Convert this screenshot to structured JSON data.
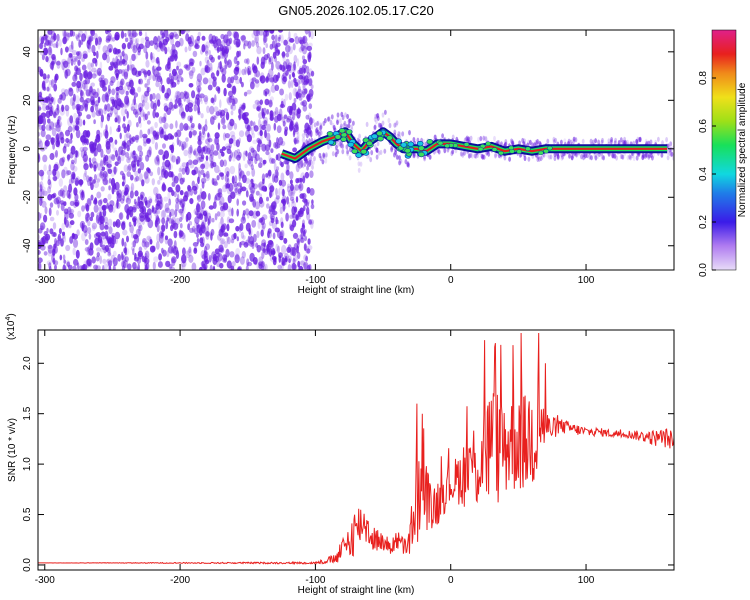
{
  "title": "GN05.2026.102.05.17.C20",
  "colors": {
    "snr_line": "#e8201e",
    "scatter_noise": "#6a1fe0",
    "track_core": "#e0201e",
    "track_edge": "#0d0f9a",
    "blob": "#3be05a",
    "axis": "#000000"
  },
  "chart_data": [
    {
      "type": "scatter",
      "title": "GN05.2026.102.05.17.C20",
      "xlabel": "Height of straight line (km)",
      "ylabel": "Frequency (Hz)",
      "xlim": [
        -305,
        165
      ],
      "ylim": [
        -50,
        49
      ],
      "xticks": [
        -300,
        -200,
        -100,
        0,
        100
      ],
      "yticks": [
        -40,
        -20,
        0,
        20,
        40
      ],
      "noise_region": {
        "x_range": [
          -305,
          -102
        ],
        "y_range": [
          -50,
          49
        ],
        "note": "dense random broadband detections"
      },
      "track": {
        "x": [
          -125,
          -115,
          -105,
          -95,
          -85,
          -78,
          -72,
          -66,
          -60,
          -55,
          -50,
          -45,
          -40,
          -35,
          -25,
          -18,
          -10,
          0,
          10,
          20,
          30,
          40,
          50,
          60,
          70,
          80,
          100,
          120,
          140,
          160
        ],
        "y": [
          -2,
          -4,
          0,
          3,
          5,
          7,
          2,
          -1,
          3,
          5,
          7,
          5,
          2,
          0,
          0,
          -1,
          2,
          2,
          1,
          0,
          1,
          -1,
          0,
          -1,
          0,
          0,
          0,
          0,
          0,
          0
        ]
      },
      "colorbar": {
        "label": "Normalized spectral amplitude",
        "range": [
          0,
          1
        ],
        "ticks": [
          "0.0",
          "0.2",
          "0.4",
          "0.6",
          "0.8"
        ]
      }
    },
    {
      "type": "line",
      "xlabel": "Height of straight line (km)",
      "ylabel": "SNR (10 * v/v)",
      "yscale_label": "(x10",
      "yscale_exp": "4",
      "xlim": [
        -305,
        165
      ],
      "ylim": [
        -0.05,
        2.33
      ],
      "xticks": [
        -300,
        -200,
        -100,
        0,
        100
      ],
      "yticks": [
        "0.0",
        "0.5",
        "1.0",
        "1.5",
        "2.0"
      ],
      "series": [
        {
          "name": "SNR",
          "x": [
            -305,
            -100,
            -85,
            -78,
            -70,
            -65,
            -58,
            -50,
            -45,
            -40,
            -32,
            -27,
            -25,
            -22,
            -18,
            -15,
            -10,
            -5,
            0,
            5,
            10,
            15,
            20,
            25,
            30,
            35,
            40,
            45,
            50,
            55,
            60,
            63,
            66,
            70,
            75,
            80,
            90,
            100,
            110,
            120,
            130,
            140,
            150,
            160,
            165
          ],
          "base": [
            0.02,
            0.02,
            0.06,
            0.18,
            0.35,
            0.44,
            0.28,
            0.22,
            0.18,
            0.25,
            0.15,
            0.5,
            0.6,
            0.75,
            0.7,
            0.55,
            0.62,
            0.75,
            0.8,
            0.85,
            0.92,
            1.0,
            1.02,
            1.1,
            1.2,
            1.15,
            1.2,
            1.25,
            1.3,
            1.2,
            1.3,
            1.3,
            1.4,
            1.35,
            1.35,
            1.38,
            1.35,
            1.32,
            1.32,
            1.3,
            1.3,
            1.28,
            1.26,
            1.26,
            1.22
          ],
          "amp": [
            0.0,
            0.01,
            0.05,
            0.15,
            0.25,
            0.2,
            0.15,
            0.08,
            0.1,
            0.1,
            0.1,
            0.35,
            0.5,
            0.4,
            0.35,
            0.25,
            0.25,
            0.25,
            0.2,
            0.25,
            0.35,
            0.4,
            0.5,
            0.6,
            0.6,
            0.6,
            0.55,
            0.55,
            0.6,
            0.5,
            0.55,
            0.55,
            0.4,
            0.2,
            0.12,
            0.08,
            0.06,
            0.05,
            0.04,
            0.04,
            0.04,
            0.05,
            0.08,
            0.1,
            0.1
          ],
          "peaks": [
            [
              -25,
              1.6
            ],
            [
              -21,
              1.5
            ],
            [
              25,
              2.23
            ],
            [
              33,
              2.2
            ],
            [
              46,
              2.18
            ],
            [
              52,
              2.3
            ],
            [
              65,
              2.3
            ],
            [
              70,
              2.0
            ]
          ]
        }
      ]
    }
  ]
}
